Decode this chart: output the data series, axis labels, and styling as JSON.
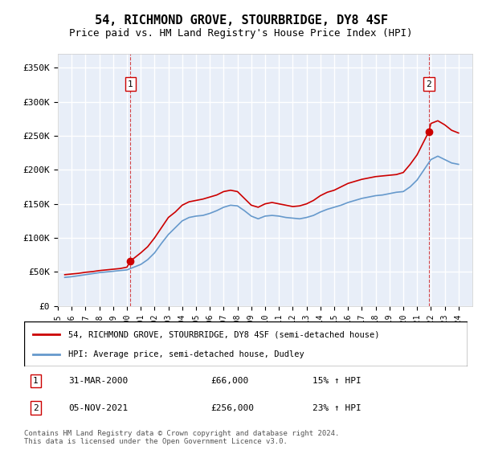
{
  "title": "54, RICHMOND GROVE, STOURBRIDGE, DY8 4SF",
  "subtitle": "Price paid vs. HM Land Registry's House Price Index (HPI)",
  "ylabel_ticks": [
    "£0",
    "£50K",
    "£100K",
    "£150K",
    "£200K",
    "£250K",
    "£300K",
    "£350K"
  ],
  "ytick_values": [
    0,
    50000,
    100000,
    150000,
    200000,
    250000,
    300000,
    350000
  ],
  "ylim": [
    0,
    370000
  ],
  "xlim_start": 1995.0,
  "xlim_end": 2025.0,
  "background_color": "#e8eef8",
  "plot_bg_color": "#e8eef8",
  "grid_color": "#ffffff",
  "sale1_x": 2000.25,
  "sale1_y": 66000,
  "sale1_label": "1",
  "sale1_date": "31-MAR-2000",
  "sale1_price": "£66,000",
  "sale1_hpi": "15% ↑ HPI",
  "sale2_x": 2021.85,
  "sale2_y": 256000,
  "sale2_label": "2",
  "sale2_date": "05-NOV-2021",
  "sale2_price": "£256,000",
  "sale2_hpi": "23% ↑ HPI",
  "line1_color": "#cc0000",
  "line2_color": "#6699cc",
  "line1_label": "54, RICHMOND GROVE, STOURBRIDGE, DY8 4SF (semi-detached house)",
  "line2_label": "HPI: Average price, semi-detached house, Dudley",
  "footer": "Contains HM Land Registry data © Crown copyright and database right 2024.\nThis data is licensed under the Open Government Licence v3.0.",
  "hpi_data": {
    "years": [
      1995.5,
      1996.0,
      1996.5,
      1997.0,
      1997.5,
      1998.0,
      1998.5,
      1999.0,
      1999.5,
      2000.0,
      2000.5,
      2001.0,
      2001.5,
      2002.0,
      2002.5,
      2003.0,
      2003.5,
      2004.0,
      2004.5,
      2005.0,
      2005.5,
      2006.0,
      2006.5,
      2007.0,
      2007.5,
      2008.0,
      2008.5,
      2009.0,
      2009.5,
      2010.0,
      2010.5,
      2011.0,
      2011.5,
      2012.0,
      2012.5,
      2013.0,
      2013.5,
      2014.0,
      2014.5,
      2015.0,
      2015.5,
      2016.0,
      2016.5,
      2017.0,
      2017.5,
      2018.0,
      2018.5,
      2019.0,
      2019.5,
      2020.0,
      2020.5,
      2021.0,
      2021.5,
      2022.0,
      2022.5,
      2023.0,
      2023.5,
      2024.0
    ],
    "values": [
      42000,
      43000,
      44500,
      46000,
      47500,
      49000,
      50000,
      51000,
      52000,
      53000,
      57000,
      61000,
      68000,
      78000,
      92000,
      105000,
      115000,
      125000,
      130000,
      132000,
      133000,
      136000,
      140000,
      145000,
      148000,
      147000,
      140000,
      132000,
      128000,
      132000,
      133000,
      132000,
      130000,
      129000,
      128000,
      130000,
      133000,
      138000,
      142000,
      145000,
      148000,
      152000,
      155000,
      158000,
      160000,
      162000,
      163000,
      165000,
      167000,
      168000,
      175000,
      185000,
      200000,
      215000,
      220000,
      215000,
      210000,
      208000
    ]
  },
  "price_data": {
    "years": [
      1995.5,
      1996.0,
      1996.5,
      1997.0,
      1997.5,
      1998.0,
      1998.5,
      1999.0,
      1999.5,
      2000.0,
      2000.25,
      2000.5,
      2001.0,
      2001.5,
      2002.0,
      2002.5,
      2003.0,
      2003.5,
      2004.0,
      2004.5,
      2005.0,
      2005.5,
      2006.0,
      2006.5,
      2007.0,
      2007.5,
      2008.0,
      2008.5,
      2009.0,
      2009.5,
      2010.0,
      2010.5,
      2011.0,
      2011.5,
      2012.0,
      2012.5,
      2013.0,
      2013.5,
      2014.0,
      2014.5,
      2015.0,
      2015.5,
      2016.0,
      2016.5,
      2017.0,
      2017.5,
      2018.0,
      2018.5,
      2019.0,
      2019.5,
      2020.0,
      2020.5,
      2021.0,
      2021.85,
      2022.0,
      2022.5,
      2023.0,
      2023.5,
      2024.0
    ],
    "values": [
      46000,
      47000,
      48000,
      49500,
      50500,
      52000,
      53000,
      54000,
      55000,
      57000,
      66000,
      70000,
      78000,
      87000,
      100000,
      115000,
      130000,
      138000,
      148000,
      153000,
      155000,
      157000,
      160000,
      163000,
      168000,
      170000,
      168000,
      158000,
      148000,
      145000,
      150000,
      152000,
      150000,
      148000,
      146000,
      147000,
      150000,
      155000,
      162000,
      167000,
      170000,
      175000,
      180000,
      183000,
      186000,
      188000,
      190000,
      191000,
      192000,
      193000,
      196000,
      208000,
      222000,
      256000,
      268000,
      272000,
      266000,
      258000,
      254000
    ]
  }
}
